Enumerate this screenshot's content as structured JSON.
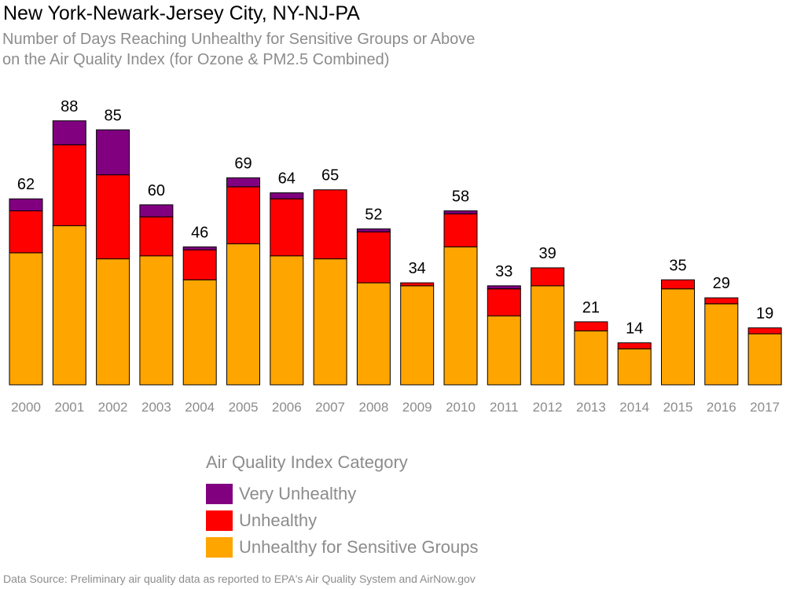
{
  "title": "New York-Newark-Jersey City, NY-NJ-PA",
  "subtitle_line1": "Number of Days Reaching Unhealthy for Sensitive Groups or Above",
  "subtitle_line2": "on the Air Quality Index (for Ozone & PM2.5 Combined)",
  "source": "Data Source: Preliminary air quality data as reported to EPA's Air Quality System and AirNow.gov",
  "chart_data": {
    "type": "bar",
    "stacked": true,
    "categories": [
      "2000",
      "2001",
      "2002",
      "2003",
      "2004",
      "2005",
      "2006",
      "2007",
      "2008",
      "2009",
      "2010",
      "2011",
      "2012",
      "2013",
      "2014",
      "2015",
      "2016",
      "2017"
    ],
    "series": [
      {
        "name": "Unhealthy for Sensitive Groups",
        "color": "#ffa500",
        "values": [
          44,
          53,
          42,
          43,
          35,
          47,
          43,
          42,
          34,
          33,
          46,
          23,
          33,
          18,
          12,
          32,
          27,
          17
        ]
      },
      {
        "name": "Unhealthy",
        "color": "#ff0000",
        "values": [
          14,
          27,
          28,
          13,
          10,
          19,
          19,
          23,
          17,
          1,
          11,
          9,
          6,
          3,
          2,
          3,
          2,
          2
        ]
      },
      {
        "name": "Very Unhealthy",
        "color": "#800080",
        "values": [
          4,
          8,
          15,
          4,
          1,
          3,
          2,
          0,
          1,
          0,
          1,
          1,
          0,
          0,
          0,
          0,
          0,
          0
        ]
      }
    ],
    "totals": [
      62,
      88,
      85,
      60,
      46,
      69,
      64,
      65,
      52,
      34,
      58,
      33,
      39,
      21,
      14,
      35,
      29,
      19
    ],
    "ylim": [
      0,
      100
    ],
    "grid": false,
    "legend": {
      "title": "Air Quality Index Category",
      "placement": "bottom-center",
      "entries": [
        {
          "label": "Very Unhealthy",
          "color": "#800080"
        },
        {
          "label": "Unhealthy",
          "color": "#ff0000"
        },
        {
          "label": "Unhealthy for Sensitive Groups",
          "color": "#ffa500"
        }
      ]
    }
  }
}
